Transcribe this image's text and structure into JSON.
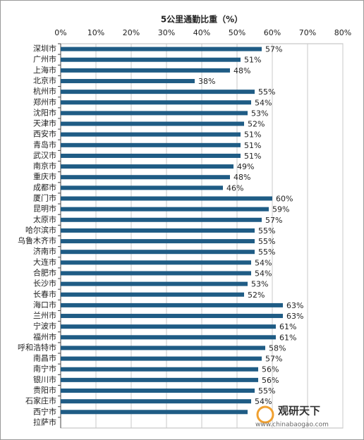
{
  "chart_data": {
    "type": "bar",
    "orientation": "horizontal",
    "title": "5公里通勤比重（%）",
    "categories": [
      "深圳市",
      "广州市",
      "上海市",
      "北京市",
      "杭州市",
      "郑州市",
      "沈阳市",
      "天津市",
      "西安市",
      "青岛市",
      "武汉市",
      "南京市",
      "重庆市",
      "成都市",
      "厦门市",
      "昆明市",
      "太原市",
      "哈尔滨市",
      "乌鲁木齐市",
      "济南市",
      "大连市",
      "合肥市",
      "长沙市",
      "长春市",
      "海口市",
      "兰州市",
      "宁波市",
      "福州市",
      "呼和浩特市",
      "南昌市",
      "南宁市",
      "银川市",
      "贵阳市",
      "石家庄市",
      "西宁市",
      "拉萨市"
    ],
    "values": [
      57,
      51,
      48,
      38,
      55,
      54,
      53,
      52,
      51,
      51,
      51,
      49,
      48,
      46,
      60,
      59,
      57,
      55,
      55,
      55,
      54,
      54,
      53,
      52,
      63,
      63,
      61,
      61,
      58,
      57,
      56,
      56,
      55,
      54,
      53,
      null
    ],
    "value_labels": [
      "57%",
      "51%",
      "48%",
      "38%",
      "55%",
      "54%",
      "53%",
      "52%",
      "51%",
      "51%",
      "51%",
      "49%",
      "48%",
      "46%",
      "60%",
      "59%",
      "57%",
      "55%",
      "55%",
      "55%",
      "54%",
      "54%",
      "53%",
      "52%",
      "63%",
      "63%",
      "61%",
      "61%",
      "58%",
      "57%",
      "56%",
      "56%",
      "55%",
      "54%",
      null,
      null
    ],
    "color": "#1f5c85",
    "xlim": [
      0,
      80
    ],
    "xticks": [
      {
        "value": 0,
        "label": "0%"
      },
      {
        "value": 10,
        "label": "10%"
      },
      {
        "value": 20,
        "label": "20%"
      },
      {
        "value": 30,
        "label": "30%"
      },
      {
        "value": 40,
        "label": "40%"
      },
      {
        "value": 50,
        "label": "50%"
      },
      {
        "value": 60,
        "label": "60%"
      },
      {
        "value": 70,
        "label": "70%"
      },
      {
        "value": 80,
        "label": "80%"
      }
    ],
    "grid": true
  },
  "watermark": {
    "name": "观研天下",
    "url": "www.chinabaogao.com"
  }
}
